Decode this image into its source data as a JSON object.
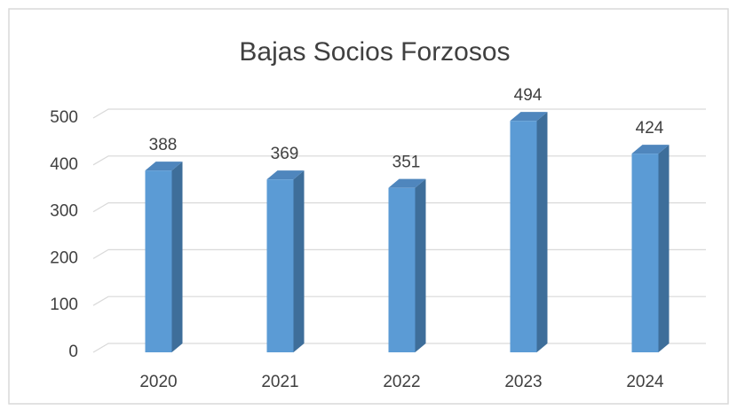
{
  "chart_data": {
    "type": "bar",
    "title": "Bajas Socios Forzosos",
    "categories": [
      "2020",
      "2021",
      "2022",
      "2023",
      "2024"
    ],
    "values": [
      388,
      369,
      351,
      494,
      424
    ],
    "color": "#5b9bd5",
    "ylim": [
      0,
      500
    ],
    "yticks": [
      0,
      100,
      200,
      300,
      400,
      500
    ],
    "grid": true
  }
}
